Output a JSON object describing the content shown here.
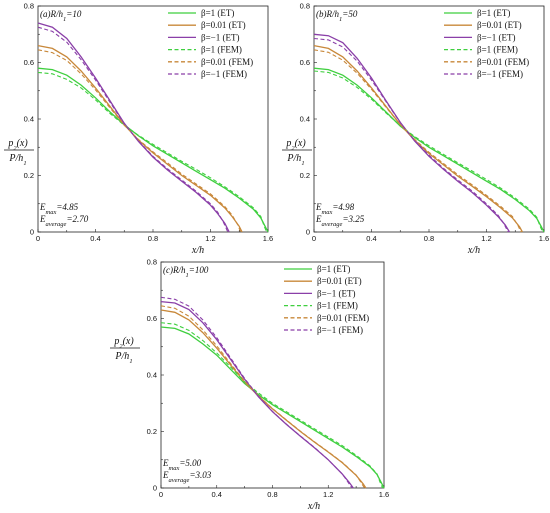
{
  "labels": {
    "ylabel_num": "p",
    "ylabel_num_sub": "2",
    "ylabel_num_tail": "(x)",
    "ylabel_den": "P/h",
    "ylabel_den_sub": "1",
    "xlabel": "x/h"
  },
  "legend_names": [
    "β=1 (ET)",
    "β=0.01 (ET)",
    "β=−1 (ET)",
    "β=1 (FEM)",
    "β=0.01 (FEM)",
    "β=−1 (FEM)"
  ],
  "colors": {
    "beta1": "#3fcf3f",
    "beta001": "#c8883a",
    "betam1": "#8a3fa8",
    "axis": "#222222"
  },
  "chart_data": [
    {
      "type": "line",
      "panel_label": "(a)",
      "panel_param": "R/h",
      "panel_param_sub": "1",
      "panel_param_val": "=10",
      "xlim": [
        0,
        1.6
      ],
      "ylim": [
        0,
        0.8
      ],
      "xticks": [
        "0",
        "0.4",
        "0.8",
        "1.2",
        "1.6"
      ],
      "yticks": [
        "0",
        "0.2",
        "0.4",
        "0.6",
        "0.8"
      ],
      "annotations": [
        {
          "main": "E",
          "sub": "max",
          "rest": "=4.85"
        },
        {
          "main": "E",
          "sub": "average",
          "rest": "=2.70"
        }
      ],
      "series": [
        {
          "name": "β=1 (ET)",
          "color": "#3fcf3f",
          "dash": false,
          "x": [
            0,
            0.1,
            0.2,
            0.3,
            0.4,
            0.5,
            0.6,
            0.7,
            0.8,
            0.9,
            1.0,
            1.1,
            1.2,
            1.3,
            1.4,
            1.5,
            1.55,
            1.58,
            1.6
          ],
          "y": [
            0.58,
            0.575,
            0.555,
            0.52,
            0.475,
            0.425,
            0.38,
            0.34,
            0.305,
            0.275,
            0.245,
            0.215,
            0.185,
            0.155,
            0.12,
            0.08,
            0.05,
            0.02,
            0
          ]
        },
        {
          "name": "β=0.01 (ET)",
          "color": "#c8883a",
          "dash": false,
          "x": [
            0,
            0.1,
            0.2,
            0.3,
            0.4,
            0.5,
            0.6,
            0.7,
            0.8,
            0.9,
            1.0,
            1.1,
            1.2,
            1.3,
            1.35,
            1.4,
            1.42
          ],
          "y": [
            0.66,
            0.65,
            0.62,
            0.57,
            0.51,
            0.445,
            0.38,
            0.325,
            0.28,
            0.24,
            0.2,
            0.165,
            0.13,
            0.085,
            0.055,
            0.02,
            0
          ]
        },
        {
          "name": "β=−1 (ET)",
          "color": "#8a3fa8",
          "dash": false,
          "x": [
            0,
            0.1,
            0.2,
            0.3,
            0.4,
            0.5,
            0.6,
            0.7,
            0.8,
            0.9,
            1.0,
            1.1,
            1.2,
            1.25,
            1.3,
            1.33
          ],
          "y": [
            0.74,
            0.725,
            0.685,
            0.62,
            0.545,
            0.465,
            0.385,
            0.32,
            0.265,
            0.22,
            0.18,
            0.14,
            0.095,
            0.065,
            0.03,
            0
          ]
        },
        {
          "name": "β=1 (FEM)",
          "color": "#3fcf3f",
          "dash": true,
          "x": [
            0,
            0.1,
            0.2,
            0.3,
            0.4,
            0.5,
            0.6,
            0.7,
            0.8,
            0.9,
            1.0,
            1.1,
            1.2,
            1.3,
            1.4,
            1.5,
            1.55,
            1.57,
            1.59
          ],
          "y": [
            0.565,
            0.56,
            0.54,
            0.51,
            0.468,
            0.42,
            0.378,
            0.342,
            0.31,
            0.28,
            0.25,
            0.222,
            0.192,
            0.16,
            0.125,
            0.085,
            0.055,
            0.025,
            0
          ]
        },
        {
          "name": "β=0.01 (FEM)",
          "color": "#c8883a",
          "dash": true,
          "x": [
            0,
            0.1,
            0.2,
            0.3,
            0.4,
            0.5,
            0.6,
            0.7,
            0.8,
            0.9,
            1.0,
            1.1,
            1.2,
            1.3,
            1.35,
            1.39,
            1.41
          ],
          "y": [
            0.645,
            0.635,
            0.607,
            0.56,
            0.503,
            0.44,
            0.378,
            0.327,
            0.284,
            0.245,
            0.205,
            0.17,
            0.135,
            0.09,
            0.06,
            0.025,
            0
          ]
        },
        {
          "name": "β=−1 (FEM)",
          "color": "#8a3fa8",
          "dash": true,
          "x": [
            0,
            0.1,
            0.2,
            0.3,
            0.4,
            0.5,
            0.6,
            0.7,
            0.8,
            0.9,
            1.0,
            1.1,
            1.2,
            1.25,
            1.29,
            1.32
          ],
          "y": [
            0.725,
            0.71,
            0.672,
            0.61,
            0.538,
            0.46,
            0.383,
            0.322,
            0.268,
            0.224,
            0.184,
            0.144,
            0.1,
            0.07,
            0.035,
            0
          ]
        }
      ]
    },
    {
      "type": "line",
      "panel_label": "(b)",
      "panel_param": "R/h",
      "panel_param_sub": "1",
      "panel_param_val": "=50",
      "xlim": [
        0,
        1.6
      ],
      "ylim": [
        0,
        0.8
      ],
      "xticks": [
        "0",
        "0.4",
        "0.8",
        "1.2",
        "1.6"
      ],
      "yticks": [
        "0",
        "0.2",
        "0.4",
        "0.6",
        "0.8"
      ],
      "annotations": [
        {
          "main": "E",
          "sub": "max",
          "rest": "=4.98"
        },
        {
          "main": "E",
          "sub": "average",
          "rest": "=3.25"
        }
      ],
      "series": [
        {
          "name": "β=1 (ET)",
          "color": "#3fcf3f",
          "dash": false,
          "x": [
            0,
            0.1,
            0.2,
            0.3,
            0.4,
            0.5,
            0.6,
            0.7,
            0.8,
            0.9,
            1.0,
            1.1,
            1.2,
            1.3,
            1.4,
            1.5,
            1.55,
            1.58,
            1.6
          ],
          "y": [
            0.58,
            0.575,
            0.555,
            0.52,
            0.475,
            0.425,
            0.375,
            0.335,
            0.3,
            0.27,
            0.24,
            0.21,
            0.18,
            0.15,
            0.115,
            0.075,
            0.048,
            0.02,
            0
          ]
        },
        {
          "name": "β=0.01 (ET)",
          "color": "#c8883a",
          "dash": false,
          "x": [
            0,
            0.1,
            0.2,
            0.3,
            0.4,
            0.5,
            0.6,
            0.7,
            0.8,
            0.9,
            1.0,
            1.1,
            1.2,
            1.3,
            1.38,
            1.43,
            1.45
          ],
          "y": [
            0.66,
            0.65,
            0.62,
            0.57,
            0.51,
            0.445,
            0.38,
            0.325,
            0.278,
            0.238,
            0.198,
            0.162,
            0.125,
            0.085,
            0.05,
            0.018,
            0
          ]
        },
        {
          "name": "β=−1 (ET)",
          "color": "#8a3fa8",
          "dash": false,
          "x": [
            0,
            0.1,
            0.2,
            0.3,
            0.4,
            0.5,
            0.6,
            0.7,
            0.8,
            0.9,
            1.0,
            1.1,
            1.2,
            1.28,
            1.33,
            1.36
          ],
          "y": [
            0.7,
            0.695,
            0.67,
            0.615,
            0.545,
            0.465,
            0.388,
            0.322,
            0.268,
            0.222,
            0.18,
            0.14,
            0.095,
            0.055,
            0.025,
            0
          ]
        },
        {
          "name": "β=1 (FEM)",
          "color": "#3fcf3f",
          "dash": true,
          "x": [
            0,
            0.1,
            0.2,
            0.3,
            0.4,
            0.5,
            0.6,
            0.7,
            0.8,
            0.9,
            1.0,
            1.1,
            1.2,
            1.3,
            1.4,
            1.5,
            1.55,
            1.57,
            1.59
          ],
          "y": [
            0.57,
            0.565,
            0.545,
            0.512,
            0.47,
            0.422,
            0.376,
            0.338,
            0.305,
            0.275,
            0.245,
            0.216,
            0.186,
            0.155,
            0.12,
            0.08,
            0.052,
            0.024,
            0
          ]
        },
        {
          "name": "β=0.01 (FEM)",
          "color": "#c8883a",
          "dash": true,
          "x": [
            0,
            0.1,
            0.2,
            0.3,
            0.4,
            0.5,
            0.6,
            0.7,
            0.8,
            0.9,
            1.0,
            1.1,
            1.2,
            1.3,
            1.38,
            1.42,
            1.44
          ],
          "y": [
            0.645,
            0.636,
            0.608,
            0.562,
            0.505,
            0.442,
            0.38,
            0.328,
            0.282,
            0.243,
            0.203,
            0.167,
            0.13,
            0.09,
            0.055,
            0.022,
            0
          ]
        },
        {
          "name": "β=−1 (FEM)",
          "color": "#8a3fa8",
          "dash": true,
          "x": [
            0,
            0.1,
            0.2,
            0.3,
            0.4,
            0.5,
            0.6,
            0.7,
            0.8,
            0.9,
            1.0,
            1.1,
            1.2,
            1.28,
            1.32,
            1.35
          ],
          "y": [
            0.685,
            0.68,
            0.655,
            0.605,
            0.538,
            0.462,
            0.387,
            0.324,
            0.272,
            0.226,
            0.184,
            0.145,
            0.1,
            0.06,
            0.03,
            0
          ]
        }
      ]
    },
    {
      "type": "line",
      "panel_label": "(c)",
      "panel_param": "R/h",
      "panel_param_sub": "1",
      "panel_param_val": "=100",
      "xlim": [
        0,
        1.6
      ],
      "ylim": [
        0,
        0.8
      ],
      "xticks": [
        "0",
        "0.4",
        "0.8",
        "1.2",
        "1.6"
      ],
      "yticks": [
        "0",
        "0.2",
        "0.4",
        "0.6",
        "0.8"
      ],
      "annotations": [
        {
          "main": "E",
          "sub": "max",
          "rest": "=5.00"
        },
        {
          "main": "E",
          "sub": "average",
          "rest": "=3.03"
        }
      ],
      "series": [
        {
          "name": "β=1 (ET)",
          "color": "#3fcf3f",
          "dash": false,
          "x": [
            0,
            0.1,
            0.2,
            0.3,
            0.4,
            0.5,
            0.6,
            0.7,
            0.8,
            0.9,
            1.0,
            1.1,
            1.2,
            1.3,
            1.4,
            1.5,
            1.55,
            1.58,
            1.6
          ],
          "y": [
            0.57,
            0.565,
            0.545,
            0.51,
            0.47,
            0.42,
            0.37,
            0.33,
            0.295,
            0.265,
            0.235,
            0.205,
            0.175,
            0.145,
            0.112,
            0.075,
            0.048,
            0.02,
            0
          ]
        },
        {
          "name": "β=0.01 (ET)",
          "color": "#c8883a",
          "dash": false,
          "x": [
            0,
            0.1,
            0.2,
            0.3,
            0.4,
            0.5,
            0.6,
            0.7,
            0.8,
            0.9,
            1.0,
            1.1,
            1.2,
            1.3,
            1.4,
            1.45,
            1.47
          ],
          "y": [
            0.63,
            0.622,
            0.595,
            0.55,
            0.495,
            0.435,
            0.375,
            0.325,
            0.28,
            0.24,
            0.2,
            0.163,
            0.127,
            0.09,
            0.045,
            0.015,
            0
          ]
        },
        {
          "name": "β=−1 (ET)",
          "color": "#8a3fa8",
          "dash": false,
          "x": [
            0,
            0.1,
            0.2,
            0.3,
            0.4,
            0.5,
            0.6,
            0.7,
            0.8,
            0.9,
            1.0,
            1.1,
            1.2,
            1.3,
            1.35,
            1.38
          ],
          "y": [
            0.66,
            0.655,
            0.632,
            0.585,
            0.525,
            0.455,
            0.385,
            0.322,
            0.27,
            0.225,
            0.183,
            0.143,
            0.1,
            0.05,
            0.02,
            0
          ]
        },
        {
          "name": "β=1 (FEM)",
          "color": "#3fcf3f",
          "dash": true,
          "x": [
            0,
            0.1,
            0.2,
            0.3,
            0.4,
            0.5,
            0.6,
            0.7,
            0.8,
            0.9,
            1.0,
            1.1,
            1.2,
            1.3,
            1.4,
            1.5,
            1.55,
            1.57,
            1.59
          ],
          "y": [
            0.585,
            0.58,
            0.558,
            0.522,
            0.478,
            0.428,
            0.376,
            0.336,
            0.3,
            0.27,
            0.24,
            0.21,
            0.18,
            0.15,
            0.116,
            0.078,
            0.05,
            0.023,
            0
          ]
        },
        {
          "name": "β=0.01 (FEM)",
          "color": "#c8883a",
          "dash": true,
          "x": [
            0,
            0.1,
            0.2,
            0.3,
            0.4,
            0.5,
            0.6,
            0.7,
            0.8,
            0.9,
            1.0,
            1.1,
            1.2,
            1.3,
            1.4,
            1.44,
            1.46
          ],
          "y": [
            0.645,
            0.636,
            0.608,
            0.56,
            0.503,
            0.44,
            0.378,
            0.326,
            0.281,
            0.241,
            0.201,
            0.164,
            0.128,
            0.091,
            0.046,
            0.016,
            0
          ]
        },
        {
          "name": "β=−1 (FEM)",
          "color": "#8a3fa8",
          "dash": true,
          "x": [
            0,
            0.1,
            0.2,
            0.3,
            0.4,
            0.5,
            0.6,
            0.7,
            0.8,
            0.9,
            1.0,
            1.1,
            1.2,
            1.3,
            1.34,
            1.37
          ],
          "y": [
            0.675,
            0.668,
            0.644,
            0.595,
            0.532,
            0.46,
            0.388,
            0.324,
            0.271,
            0.226,
            0.184,
            0.144,
            0.1,
            0.05,
            0.022,
            0
          ]
        }
      ]
    }
  ]
}
